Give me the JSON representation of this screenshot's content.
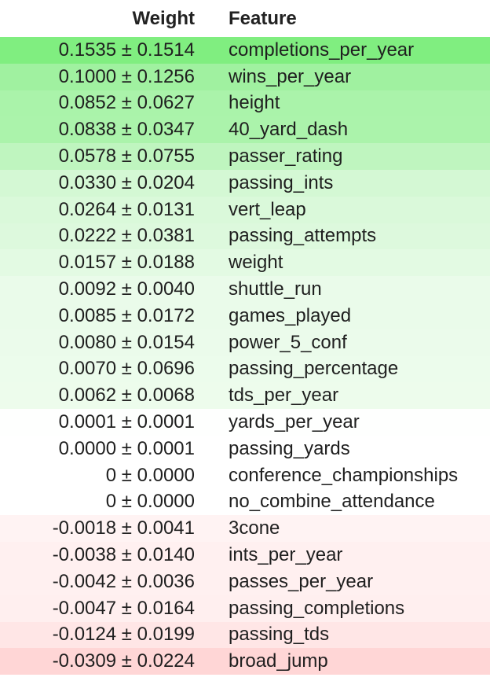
{
  "table": {
    "headers": {
      "weight": "Weight",
      "feature": "Feature"
    },
    "rows": [
      {
        "weight": "0.1535 ± 0.1514",
        "feature": "completions_per_year",
        "bg": "#80ee80"
      },
      {
        "weight": "0.1000 ± 0.1256",
        "feature": "wins_per_year",
        "bg": "#a0f1a0"
      },
      {
        "weight": "0.0852 ± 0.0627",
        "feature": "height",
        "bg": "#aaf3aa"
      },
      {
        "weight": "0.0838 ± 0.0347",
        "feature": "40_yard_dash",
        "bg": "#abf3ab"
      },
      {
        "weight": "0.0578 ± 0.0755",
        "feature": "passer_rating",
        "bg": "#bff5bf"
      },
      {
        "weight": "0.0330 ± 0.0204",
        "feature": "passing_ints",
        "bg": "#d4f8d4"
      },
      {
        "weight": "0.0264 ± 0.0131",
        "feature": "vert_leap",
        "bg": "#daf9da"
      },
      {
        "weight": "0.0222 ± 0.0381",
        "feature": "passing_attempts",
        "bg": "#ddf9dd"
      },
      {
        "weight": "0.0157 ± 0.0188",
        "feature": "weight",
        "bg": "#e3fae3"
      },
      {
        "weight": "0.0092 ± 0.0040",
        "feature": "shuttle_run",
        "bg": "#eafbea"
      },
      {
        "weight": "0.0085 ± 0.0172",
        "feature": "games_played",
        "bg": "#eafbea"
      },
      {
        "weight": "0.0080 ± 0.0154",
        "feature": "power_5_conf",
        "bg": "#ebfbeb"
      },
      {
        "weight": "0.0070 ± 0.0696",
        "feature": "passing_percentage",
        "bg": "#ecfcec"
      },
      {
        "weight": "0.0062 ± 0.0068",
        "feature": "tds_per_year",
        "bg": "#edfcec"
      },
      {
        "weight": "0.0001 ± 0.0001",
        "feature": "yards_per_year",
        "bg": "#fefffe"
      },
      {
        "weight": "0.0000 ± 0.0001",
        "feature": "passing_yards",
        "bg": "#ffffff"
      },
      {
        "weight": "0 ± 0.0000",
        "feature": "conference_championships",
        "bg": "#ffffff"
      },
      {
        "weight": "0 ± 0.0000",
        "feature": "no_combine_attendance",
        "bg": "#ffffff"
      },
      {
        "weight": "-0.0018 ± 0.0041",
        "feature": "3cone",
        "bg": "#fff3f3"
      },
      {
        "weight": "-0.0038 ± 0.0140",
        "feature": "ints_per_year",
        "bg": "#fff0f0"
      },
      {
        "weight": "-0.0042 ± 0.0036",
        "feature": "passes_per_year",
        "bg": "#fff0f0"
      },
      {
        "weight": "-0.0047 ± 0.0164",
        "feature": "passing_completions",
        "bg": "#ffefef"
      },
      {
        "weight": "-0.0124 ± 0.0199",
        "feature": "passing_tds",
        "bg": "#ffe6e6"
      },
      {
        "weight": "-0.0309 ± 0.0224",
        "feature": "broad_jump",
        "bg": "#ffd6d6"
      }
    ]
  }
}
